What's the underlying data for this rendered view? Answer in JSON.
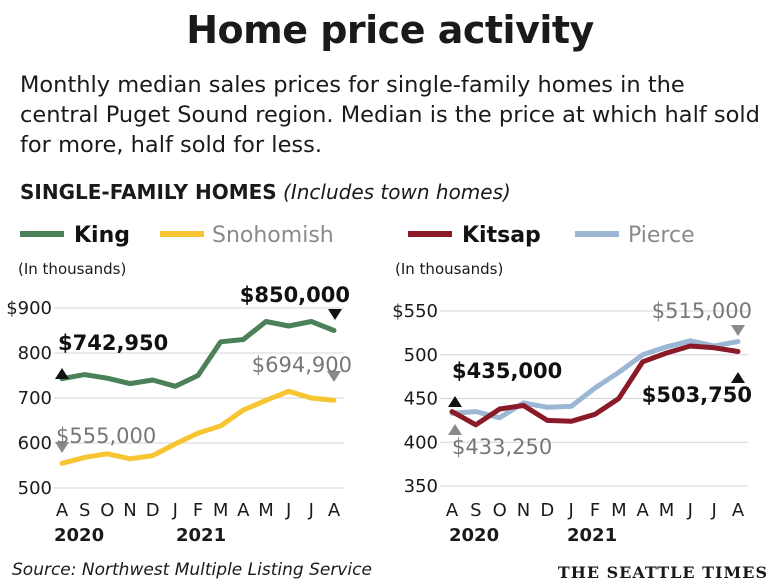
{
  "title": "Home price activity",
  "subtitle": "Monthly median sales prices for single-family homes in the central Puget Sound region. Median is the price at which half sold for more, half sold for less.",
  "section": {
    "bold": "SINGLE-FAMILY HOMES",
    "italic": "(Includes town homes)"
  },
  "source": "Source: Northwest Multiple Listing Service",
  "brand": "THE SEATTLE TIMES",
  "chart_data": [
    {
      "type": "line",
      "unit_label": "(In thousands)",
      "x": [
        "A",
        "S",
        "O",
        "N",
        "D",
        "J",
        "F",
        "M",
        "A",
        "M",
        "J",
        "J",
        "A"
      ],
      "year_labels": [
        "2020",
        "2021"
      ],
      "ylim": [
        500,
        900
      ],
      "yticks": [
        "$900",
        "800",
        "700",
        "600",
        "500"
      ],
      "ytick_values": [
        900,
        800,
        700,
        600,
        500
      ],
      "grid": true,
      "legend": "top",
      "series": [
        {
          "name": "King",
          "color": "#4a8158",
          "values": [
            742.95,
            752,
            744,
            732,
            740,
            726,
            750,
            825,
            830,
            870,
            860,
            870,
            850
          ],
          "annotations": [
            {
              "index": 0,
              "text": "$742,950"
            },
            {
              "index": 12,
              "text": "$850,000"
            }
          ]
        },
        {
          "name": "Snohomish",
          "color": "#f7c531",
          "values": [
            555,
            568,
            576,
            565,
            572,
            598,
            622,
            638,
            673,
            695,
            715,
            700,
            694.9
          ],
          "annotations": [
            {
              "index": 0,
              "text": "$555,000"
            },
            {
              "index": 12,
              "text": "$694,900"
            }
          ]
        }
      ]
    },
    {
      "type": "line",
      "unit_label": "(In thousands)",
      "x": [
        "A",
        "S",
        "O",
        "N",
        "D",
        "J",
        "F",
        "M",
        "A",
        "M",
        "J",
        "J",
        "A"
      ],
      "year_labels": [
        "2020",
        "2021"
      ],
      "ylim": [
        350,
        550
      ],
      "yticks": [
        "$550",
        "500",
        "450",
        "400",
        "350"
      ],
      "ytick_values": [
        550,
        500,
        450,
        400,
        350
      ],
      "grid": true,
      "legend": "top",
      "series": [
        {
          "name": "Kitsap",
          "color": "#8a1a27",
          "values": [
            435,
            420,
            438,
            442,
            425,
            424,
            432,
            450,
            492,
            502,
            510,
            508,
            503.75
          ],
          "annotations": [
            {
              "index": 0,
              "text": "$435,000"
            },
            {
              "index": 12,
              "text": "$503,750"
            }
          ]
        },
        {
          "name": "Pierce",
          "color": "#9cb7d3",
          "values": [
            433.25,
            435,
            428,
            445,
            440,
            441,
            462,
            480,
            500,
            509,
            516,
            510,
            515
          ],
          "annotations": [
            {
              "index": 0,
              "text": "$433,250"
            },
            {
              "index": 12,
              "text": "$515,000"
            }
          ]
        }
      ]
    }
  ]
}
